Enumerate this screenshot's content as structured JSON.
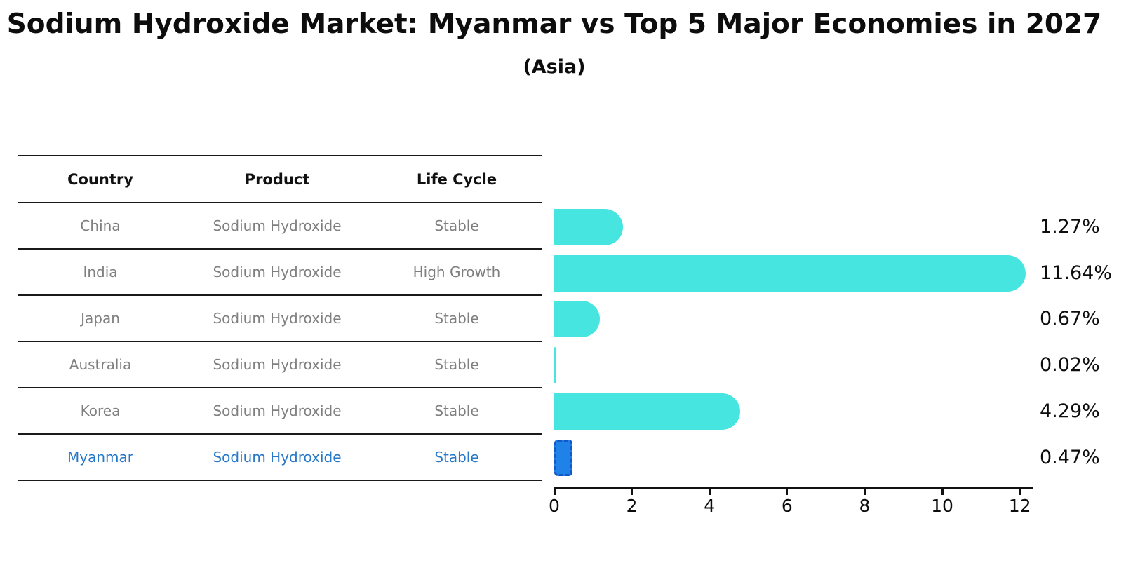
{
  "title": "Sodium Hydroxide Market: Myanmar vs Top 5 Major Economies in 2027",
  "subtitle": "(Asia)",
  "table": {
    "headers": [
      "Country",
      "Product",
      "Life Cycle"
    ],
    "rows": [
      {
        "country": "China",
        "product": "Sodium Hydroxide",
        "life_cycle": "Stable",
        "highlight": false
      },
      {
        "country": "India",
        "product": "Sodium Hydroxide",
        "life_cycle": "High Growth",
        "highlight": false
      },
      {
        "country": "Japan",
        "product": "Sodium Hydroxide",
        "life_cycle": "Stable",
        "highlight": false
      },
      {
        "country": "Australia",
        "product": "Sodium Hydroxide",
        "life_cycle": "Stable",
        "highlight": false
      },
      {
        "country": "Korea",
        "product": "Sodium Hydroxide",
        "life_cycle": "Stable",
        "highlight": false
      },
      {
        "country": "Myanmar",
        "product": "Sodium Hydroxide",
        "life_cycle": "Stable",
        "highlight": true
      }
    ]
  },
  "chart_data": {
    "type": "bar",
    "orientation": "horizontal",
    "title": "Sodium Hydroxide Market: Myanmar vs Top 5 Major Economies in 2027",
    "subtitle": "(Asia)",
    "categories": [
      "China",
      "India",
      "Japan",
      "Australia",
      "Korea",
      "Myanmar"
    ],
    "values": [
      1.27,
      11.64,
      0.67,
      0.02,
      4.29,
      0.47
    ],
    "value_labels": [
      "1.27%",
      "11.64%",
      "0.67%",
      "0.02%",
      "4.29%",
      "0.47%"
    ],
    "x_ticks": [
      0,
      2,
      4,
      6,
      8,
      10,
      12
    ],
    "xlim": [
      0,
      12
    ],
    "grid": false,
    "legend": false,
    "highlight_category": "Myanmar"
  },
  "colors": {
    "bar_default": "#47e5e0",
    "bar_highlight_fill": "#1e82e8",
    "bar_highlight_border": "#1358c5",
    "text_gray": "#7f7f7f",
    "text_highlight_blue": "#2878c8",
    "text_black": "#0d0d0d"
  }
}
